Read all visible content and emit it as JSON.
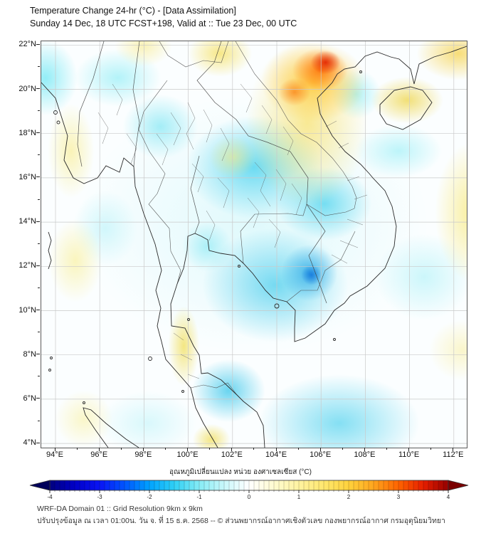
{
  "header": {
    "title": "Temperature Change 24-hr (°C) - [Data Assimilation]",
    "subtitle": "Sunday 14 Dec, 18 UTC FCST+198, Valid at :: Tue 23 Dec, 00 UTC"
  },
  "map": {
    "y_ticks": [
      "22°N",
      "20°N",
      "18°N",
      "16°N",
      "14°N",
      "12°N",
      "10°N",
      "8°N",
      "6°N",
      "4°N"
    ],
    "x_ticks": [
      "94°E",
      "96°E",
      "98°E",
      "100°E",
      "102°E",
      "104°E",
      "106°E",
      "108°E",
      "110°E",
      "112°E"
    ]
  },
  "colorbar": {
    "label": "อุณหภูมิเปลี่ยนแปลง หน่วย องศาเซลเซียส (°C)",
    "ticks": [
      "-4",
      "-3",
      "-2",
      "-1",
      "0",
      "1",
      "2",
      "3",
      "4"
    ],
    "range": [
      -4,
      4
    ],
    "stops": [
      {
        "t": -4,
        "c": "#00007f"
      },
      {
        "t": -3.5,
        "c": "#0000c8"
      },
      {
        "t": -3,
        "c": "#0a14f5"
      },
      {
        "t": -2.5,
        "c": "#0055ff"
      },
      {
        "t": -2,
        "c": "#00a2ff"
      },
      {
        "t": -1.5,
        "c": "#2fd0f5"
      },
      {
        "t": -1,
        "c": "#86ecf5"
      },
      {
        "t": -0.5,
        "c": "#c9f7fa"
      },
      {
        "t": 0,
        "c": "#ffffff"
      },
      {
        "t": 0.5,
        "c": "#fffbd0"
      },
      {
        "t": 1,
        "c": "#fff3a0"
      },
      {
        "t": 1.5,
        "c": "#ffe76e"
      },
      {
        "t": 2,
        "c": "#ffd23c"
      },
      {
        "t": 2.5,
        "c": "#ffa51e"
      },
      {
        "t": 3,
        "c": "#ff6400"
      },
      {
        "t": 3.5,
        "c": "#e61e00"
      },
      {
        "t": 4,
        "c": "#960000"
      }
    ],
    "arrow_left_color": "#00005a",
    "arrow_right_color": "#7a0000"
  },
  "footer": {
    "line1": "WRF-DA Domain 01 :: Grid Resolution 9km x 9km",
    "line2": "ปรับปรุงข้อมูล ณ เวลา 01:00น. วัน จ. ที่ 15 ธ.ค. 2568 -- © ส่วนพยากรณ์อากาศเชิงตัวเลข กองพยากรณ์อากาศ กรมอุตุนิยมวิทยา"
  },
  "palette": {
    "cold": "#29b6e8",
    "deep_cold": "#1f8fe0",
    "neutral": "#ffffff",
    "warm": "#f5d96a",
    "hot": "#ff7f00",
    "extreme": "#e62800"
  }
}
